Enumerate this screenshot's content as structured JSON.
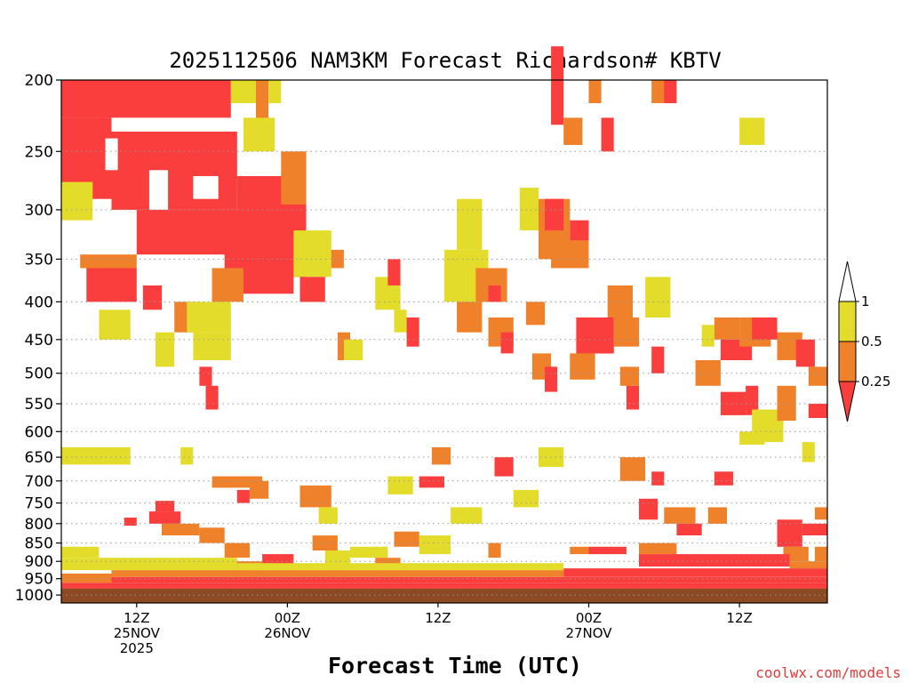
{
  "chart_data": {
    "type": "heatmap",
    "title": "2025112506 NAM3KM Forecast Richardson# KBTV",
    "xlabel": "Forecast Time (UTC)",
    "ylabel": "",
    "y_scale": "log-pressure (inverted)",
    "ylim": [
      1000,
      200
    ],
    "y_ticks": [
      200,
      250,
      300,
      350,
      400,
      450,
      500,
      550,
      600,
      650,
      700,
      750,
      800,
      850,
      900,
      950,
      1000
    ],
    "x_ticks": [
      {
        "label": "12Z",
        "sub": [
          "25NOV",
          "2025"
        ],
        "hour": 6
      },
      {
        "label": "00Z",
        "sub": [
          "26NOV"
        ],
        "hour": 18
      },
      {
        "label": "12Z",
        "sub": [],
        "hour": 30
      },
      {
        "label": "00Z",
        "sub": [
          "27NOV"
        ],
        "hour": 42
      },
      {
        "label": "12Z",
        "sub": [],
        "hour": 54
      }
    ],
    "hours": [
      0,
      61
    ],
    "grid": "dotted horizontal at each pressure level",
    "legend": {
      "placement": "right",
      "levels": [
        {
          "label": "1",
          "color": "#ffffff"
        },
        {
          "label": "0.5",
          "color": "#e3dc2b"
        },
        {
          "label": "0.25",
          "color": "#f0812b"
        },
        {
          "label": "",
          "color": "#fa3d3d"
        }
      ]
    },
    "colors": {
      "lt_025": "#fa3d3d",
      "025_05": "#f0812b",
      "05_1": "#e3dc2b",
      "ground": "#8b4a22"
    },
    "rects": [
      {
        "t0": 0.0,
        "t1": 13.5,
        "p0": 200,
        "p1": 225,
        "c": "red"
      },
      {
        "t0": 13.5,
        "t1": 15.5,
        "p0": 200,
        "p1": 215,
        "c": "yellow"
      },
      {
        "t0": 15.5,
        "t1": 16.5,
        "p0": 200,
        "p1": 240,
        "c": "orange"
      },
      {
        "t0": 16.5,
        "t1": 17.5,
        "p0": 200,
        "p1": 215,
        "c": "yellow"
      },
      {
        "t0": 0.0,
        "t1": 4.0,
        "p0": 225,
        "p1": 290,
        "c": "red"
      },
      {
        "t0": 4.0,
        "t1": 14.0,
        "p0": 235,
        "p1": 300,
        "c": "red"
      },
      {
        "t0": 14.0,
        "t1": 19.5,
        "p0": 270,
        "p1": 370,
        "c": "red"
      },
      {
        "t0": 6.0,
        "t1": 13.5,
        "p0": 300,
        "p1": 345,
        "c": "red"
      },
      {
        "t0": 2.0,
        "t1": 6.0,
        "p0": 360,
        "p1": 400,
        "c": "red"
      },
      {
        "t0": 13.0,
        "t1": 18.5,
        "p0": 300,
        "p1": 390,
        "c": "red"
      },
      {
        "t0": 1.5,
        "t1": 6.0,
        "p0": 345,
        "p1": 360,
        "c": "orange"
      },
      {
        "t0": 0.0,
        "t1": 2.5,
        "p0": 275,
        "p1": 310,
        "c": "yellow"
      },
      {
        "t0": 14.5,
        "t1": 17.0,
        "p0": 225,
        "p1": 250,
        "c": "yellow"
      },
      {
        "t0": 17.5,
        "t1": 19.5,
        "p0": 250,
        "p1": 295,
        "c": "orange"
      },
      {
        "t0": 7.0,
        "t1": 8.5,
        "p0": 265,
        "p1": 300,
        "c": "white"
      },
      {
        "t0": 10.5,
        "t1": 12.5,
        "p0": 270,
        "p1": 290,
        "c": "white"
      },
      {
        "t0": 3.5,
        "t1": 4.5,
        "p0": 240,
        "p1": 265,
        "c": "white"
      },
      {
        "t0": 9.0,
        "t1": 11.0,
        "p0": 400,
        "p1": 440,
        "c": "orange"
      },
      {
        "t0": 6.5,
        "t1": 8.0,
        "p0": 380,
        "p1": 410,
        "c": "red"
      },
      {
        "t0": 12.0,
        "t1": 14.5,
        "p0": 360,
        "p1": 400,
        "c": "orange"
      },
      {
        "t0": 10.0,
        "t1": 13.5,
        "p0": 400,
        "p1": 440,
        "c": "yellow"
      },
      {
        "t0": 3.0,
        "t1": 5.5,
        "p0": 410,
        "p1": 450,
        "c": "yellow"
      },
      {
        "t0": 7.5,
        "t1": 9.0,
        "p0": 440,
        "p1": 490,
        "c": "yellow"
      },
      {
        "t0": 10.5,
        "t1": 13.5,
        "p0": 440,
        "p1": 480,
        "c": "yellow"
      },
      {
        "t0": 11.0,
        "t1": 12.0,
        "p0": 490,
        "p1": 520,
        "c": "red"
      },
      {
        "t0": 11.5,
        "t1": 12.5,
        "p0": 520,
        "p1": 560,
        "c": "red"
      },
      {
        "t0": 0.0,
        "t1": 5.5,
        "p0": 630,
        "p1": 665,
        "c": "yellow"
      },
      {
        "t0": 9.5,
        "t1": 10.5,
        "p0": 630,
        "p1": 665,
        "c": "yellow"
      },
      {
        "t0": 12.0,
        "t1": 16.0,
        "p0": 690,
        "p1": 715,
        "c": "orange"
      },
      {
        "t0": 7.5,
        "t1": 9.0,
        "p0": 745,
        "p1": 770,
        "c": "red"
      },
      {
        "t0": 7.0,
        "t1": 9.5,
        "p0": 770,
        "p1": 800,
        "c": "red"
      },
      {
        "t0": 5.0,
        "t1": 6.0,
        "p0": 785,
        "p1": 805,
        "c": "red"
      },
      {
        "t0": 11.0,
        "t1": 13.0,
        "p0": 810,
        "p1": 850,
        "c": "orange"
      },
      {
        "t0": 13.0,
        "t1": 15.0,
        "p0": 850,
        "p1": 890,
        "c": "orange"
      },
      {
        "t0": 19.0,
        "t1": 21.5,
        "p0": 710,
        "p1": 760,
        "c": "orange"
      },
      {
        "t0": 20.5,
        "t1": 22.0,
        "p0": 760,
        "p1": 800,
        "c": "yellow"
      },
      {
        "t0": 20.0,
        "t1": 22.0,
        "p0": 830,
        "p1": 870,
        "c": "orange"
      },
      {
        "t0": 21.0,
        "t1": 23.0,
        "p0": 870,
        "p1": 910,
        "c": "yellow"
      },
      {
        "t0": 18.5,
        "t1": 21.5,
        "p0": 320,
        "p1": 370,
        "c": "yellow"
      },
      {
        "t0": 19.0,
        "t1": 21.0,
        "p0": 370,
        "p1": 400,
        "c": "red"
      },
      {
        "t0": 21.5,
        "t1": 22.5,
        "p0": 340,
        "p1": 360,
        "c": "orange"
      },
      {
        "t0": 22.0,
        "t1": 23.0,
        "p0": 440,
        "p1": 480,
        "c": "orange"
      },
      {
        "t0": 22.5,
        "t1": 24.0,
        "p0": 450,
        "p1": 480,
        "c": "yellow"
      },
      {
        "t0": 25.0,
        "t1": 27.0,
        "p0": 370,
        "p1": 410,
        "c": "yellow"
      },
      {
        "t0": 26.0,
        "t1": 27.0,
        "p0": 350,
        "p1": 380,
        "c": "red"
      },
      {
        "t0": 26.5,
        "t1": 27.5,
        "p0": 410,
        "p1": 440,
        "c": "yellow"
      },
      {
        "t0": 27.5,
        "t1": 28.5,
        "p0": 420,
        "p1": 460,
        "c": "red"
      },
      {
        "t0": 30.5,
        "t1": 34.0,
        "p0": 340,
        "p1": 400,
        "c": "yellow"
      },
      {
        "t0": 31.5,
        "t1": 33.5,
        "p0": 290,
        "p1": 340,
        "c": "yellow"
      },
      {
        "t0": 31.5,
        "t1": 33.5,
        "p0": 400,
        "p1": 440,
        "c": "orange"
      },
      {
        "t0": 33.0,
        "t1": 35.5,
        "p0": 360,
        "p1": 400,
        "c": "orange"
      },
      {
        "t0": 34.0,
        "t1": 35.0,
        "p0": 380,
        "p1": 400,
        "c": "red"
      },
      {
        "t0": 34.0,
        "t1": 36.0,
        "p0": 420,
        "p1": 460,
        "c": "orange"
      },
      {
        "t0": 35.0,
        "t1": 36.0,
        "p0": 440,
        "p1": 470,
        "c": "red"
      },
      {
        "t0": 36.5,
        "t1": 38.0,
        "p0": 280,
        "p1": 320,
        "c": "yellow"
      },
      {
        "t0": 38.0,
        "t1": 40.5,
        "p0": 290,
        "p1": 350,
        "c": "orange"
      },
      {
        "t0": 38.5,
        "t1": 40.0,
        "p0": 290,
        "p1": 320,
        "c": "red"
      },
      {
        "t0": 40.5,
        "t1": 42.0,
        "p0": 310,
        "p1": 360,
        "c": "red"
      },
      {
        "t0": 39.0,
        "t1": 42.0,
        "p0": 330,
        "p1": 360,
        "c": "orange"
      },
      {
        "t0": 41.0,
        "t1": 44.0,
        "p0": 420,
        "p1": 470,
        "c": "red"
      },
      {
        "t0": 40.5,
        "t1": 42.5,
        "p0": 470,
        "p1": 510,
        "c": "orange"
      },
      {
        "t0": 43.5,
        "t1": 45.5,
        "p0": 380,
        "p1": 420,
        "c": "orange"
      },
      {
        "t0": 44.0,
        "t1": 46.0,
        "p0": 420,
        "p1": 460,
        "c": "orange"
      },
      {
        "t0": 44.5,
        "t1": 46.0,
        "p0": 490,
        "p1": 520,
        "c": "orange"
      },
      {
        "t0": 45.0,
        "t1": 46.0,
        "p0": 520,
        "p1": 560,
        "c": "red"
      },
      {
        "t0": 46.5,
        "t1": 48.5,
        "p0": 370,
        "p1": 420,
        "c": "yellow"
      },
      {
        "t0": 47.0,
        "t1": 48.0,
        "p0": 460,
        "p1": 500,
        "c": "red"
      },
      {
        "t0": 37.0,
        "t1": 38.5,
        "p0": 400,
        "p1": 430,
        "c": "orange"
      },
      {
        "t0": 37.5,
        "t1": 39.0,
        "p0": 470,
        "p1": 510,
        "c": "orange"
      },
      {
        "t0": 38.5,
        "t1": 39.5,
        "p0": 490,
        "p1": 530,
        "c": "red"
      },
      {
        "t0": 39.0,
        "t1": 40.0,
        "p0": 180,
        "p1": 230,
        "c": "red"
      },
      {
        "t0": 40.0,
        "t1": 41.5,
        "p0": 225,
        "p1": 245,
        "c": "orange"
      },
      {
        "t0": 42.0,
        "t1": 43.0,
        "p0": 200,
        "p1": 215,
        "c": "orange"
      },
      {
        "t0": 43.0,
        "t1": 44.0,
        "p0": 225,
        "p1": 250,
        "c": "red"
      },
      {
        "t0": 47.0,
        "t1": 48.5,
        "p0": 200,
        "p1": 215,
        "c": "orange"
      },
      {
        "t0": 48.0,
        "t1": 49.0,
        "p0": 200,
        "p1": 215,
        "c": "red"
      },
      {
        "t0": 54.0,
        "t1": 56.0,
        "p0": 225,
        "p1": 245,
        "c": "yellow"
      },
      {
        "t0": 51.0,
        "t1": 52.0,
        "p0": 430,
        "p1": 460,
        "c": "yellow"
      },
      {
        "t0": 52.0,
        "t1": 54.0,
        "p0": 420,
        "p1": 450,
        "c": "orange"
      },
      {
        "t0": 52.5,
        "t1": 55.0,
        "p0": 450,
        "p1": 480,
        "c": "red"
      },
      {
        "t0": 54.0,
        "t1": 56.5,
        "p0": 420,
        "p1": 460,
        "c": "orange"
      },
      {
        "t0": 55.0,
        "t1": 57.0,
        "p0": 420,
        "p1": 450,
        "c": "red"
      },
      {
        "t0": 57.0,
        "t1": 59.0,
        "p0": 440,
        "p1": 480,
        "c": "orange"
      },
      {
        "t0": 58.5,
        "t1": 60.0,
        "p0": 450,
        "p1": 490,
        "c": "red"
      },
      {
        "t0": 59.5,
        "t1": 61.0,
        "p0": 490,
        "p1": 520,
        "c": "orange"
      },
      {
        "t0": 50.5,
        "t1": 52.5,
        "p0": 480,
        "p1": 520,
        "c": "orange"
      },
      {
        "t0": 52.5,
        "t1": 54.5,
        "p0": 530,
        "p1": 570,
        "c": "red"
      },
      {
        "t0": 54.5,
        "t1": 55.5,
        "p0": 520,
        "p1": 570,
        "c": "red"
      },
      {
        "t0": 55.0,
        "t1": 57.5,
        "p0": 560,
        "p1": 620,
        "c": "yellow"
      },
      {
        "t0": 57.0,
        "t1": 58.5,
        "p0": 520,
        "p1": 580,
        "c": "orange"
      },
      {
        "t0": 59.5,
        "t1": 61.0,
        "p0": 550,
        "p1": 575,
        "c": "red"
      },
      {
        "t0": 54.0,
        "t1": 56.0,
        "p0": 600,
        "p1": 625,
        "c": "yellow"
      },
      {
        "t0": 59.0,
        "t1": 60.0,
        "p0": 620,
        "p1": 660,
        "c": "yellow"
      },
      {
        "t0": 52.0,
        "t1": 53.5,
        "p0": 680,
        "p1": 710,
        "c": "red"
      },
      {
        "t0": 44.5,
        "t1": 46.5,
        "p0": 650,
        "p1": 700,
        "c": "orange"
      },
      {
        "t0": 47.0,
        "t1": 48.0,
        "p0": 680,
        "p1": 710,
        "c": "red"
      },
      {
        "t0": 46.0,
        "t1": 47.5,
        "p0": 740,
        "p1": 790,
        "c": "red"
      },
      {
        "t0": 48.0,
        "t1": 50.5,
        "p0": 760,
        "p1": 800,
        "c": "orange"
      },
      {
        "t0": 49.0,
        "t1": 51.0,
        "p0": 800,
        "p1": 830,
        "c": "red"
      },
      {
        "t0": 51.5,
        "t1": 53.0,
        "p0": 760,
        "p1": 800,
        "c": "orange"
      },
      {
        "t0": 57.0,
        "t1": 59.0,
        "p0": 790,
        "p1": 860,
        "c": "red"
      },
      {
        "t0": 59.0,
        "t1": 61.0,
        "p0": 800,
        "p1": 830,
        "c": "red"
      },
      {
        "t0": 60.0,
        "t1": 61.0,
        "p0": 760,
        "p1": 790,
        "c": "orange"
      },
      {
        "t0": 57.5,
        "t1": 59.5,
        "p0": 860,
        "p1": 900,
        "c": "orange"
      },
      {
        "t0": 60.0,
        "t1": 61.0,
        "p0": 860,
        "p1": 900,
        "c": "orange"
      },
      {
        "t0": 38.0,
        "t1": 40.0,
        "p0": 630,
        "p1": 670,
        "c": "yellow"
      },
      {
        "t0": 31.0,
        "t1": 33.5,
        "p0": 760,
        "p1": 800,
        "c": "yellow"
      },
      {
        "t0": 36.0,
        "t1": 38.0,
        "p0": 720,
        "p1": 760,
        "c": "yellow"
      },
      {
        "t0": 34.5,
        "t1": 36.0,
        "p0": 650,
        "p1": 690,
        "c": "red"
      },
      {
        "t0": 34.0,
        "t1": 35.0,
        "p0": 850,
        "p1": 890,
        "c": "orange"
      },
      {
        "t0": 40.5,
        "t1": 42.0,
        "p0": 860,
        "p1": 880,
        "c": "orange"
      },
      {
        "t0": 42.0,
        "t1": 45.0,
        "p0": 860,
        "p1": 880,
        "c": "red"
      },
      {
        "t0": 46.0,
        "t1": 49.0,
        "p0": 850,
        "p1": 880,
        "c": "orange"
      },
      {
        "t0": 28.5,
        "t1": 30.5,
        "p0": 690,
        "p1": 715,
        "c": "red"
      },
      {
        "t0": 29.5,
        "t1": 31.0,
        "p0": 630,
        "p1": 665,
        "c": "orange"
      },
      {
        "t0": 26.0,
        "t1": 28.0,
        "p0": 690,
        "p1": 730,
        "c": "yellow"
      },
      {
        "t0": 26.5,
        "t1": 28.5,
        "p0": 820,
        "p1": 860,
        "c": "orange"
      },
      {
        "t0": 28.5,
        "t1": 31.0,
        "p0": 830,
        "p1": 880,
        "c": "yellow"
      },
      {
        "t0": 23.0,
        "t1": 26.0,
        "p0": 860,
        "p1": 890,
        "c": "yellow"
      },
      {
        "t0": 25.0,
        "t1": 27.0,
        "p0": 890,
        "p1": 920,
        "c": "orange"
      },
      {
        "t0": 16.0,
        "t1": 18.5,
        "p0": 880,
        "p1": 910,
        "c": "red"
      },
      {
        "t0": 13.5,
        "t1": 16.0,
        "p0": 900,
        "p1": 925,
        "c": "orange"
      },
      {
        "t0": 14.0,
        "t1": 15.0,
        "p0": 720,
        "p1": 750,
        "c": "red"
      },
      {
        "t0": 15.0,
        "t1": 16.5,
        "p0": 700,
        "p1": 740,
        "c": "orange"
      },
      {
        "t0": 0.0,
        "t1": 61.0,
        "p0": 962,
        "p1": 980,
        "c": "red"
      },
      {
        "t0": 4.0,
        "t1": 61.0,
        "p0": 945,
        "p1": 962,
        "c": "red"
      },
      {
        "t0": 40.0,
        "t1": 61.0,
        "p0": 920,
        "p1": 945,
        "c": "red"
      },
      {
        "t0": 46.0,
        "t1": 58.0,
        "p0": 880,
        "p1": 915,
        "c": "red"
      },
      {
        "t0": 0.0,
        "t1": 4.0,
        "p0": 935,
        "p1": 962,
        "c": "orange"
      },
      {
        "t0": 4.0,
        "t1": 40.0,
        "p0": 925,
        "p1": 945,
        "c": "orange"
      },
      {
        "t0": 58.0,
        "t1": 61.0,
        "p0": 900,
        "p1": 920,
        "c": "orange"
      },
      {
        "t0": 0.0,
        "t1": 14.0,
        "p0": 890,
        "p1": 925,
        "c": "yellow"
      },
      {
        "t0": 14.0,
        "t1": 40.0,
        "p0": 905,
        "p1": 925,
        "c": "yellow"
      },
      {
        "t0": 0.0,
        "t1": 3.0,
        "p0": 860,
        "p1": 890,
        "c": "yellow"
      },
      {
        "t0": 8.0,
        "t1": 11.0,
        "p0": 800,
        "p1": 830,
        "c": "orange"
      },
      {
        "t0": 0.0,
        "t1": 61.0,
        "p0": 980,
        "p1": 1025,
        "c": "ground"
      }
    ]
  },
  "credit": "coolwx.com/models"
}
